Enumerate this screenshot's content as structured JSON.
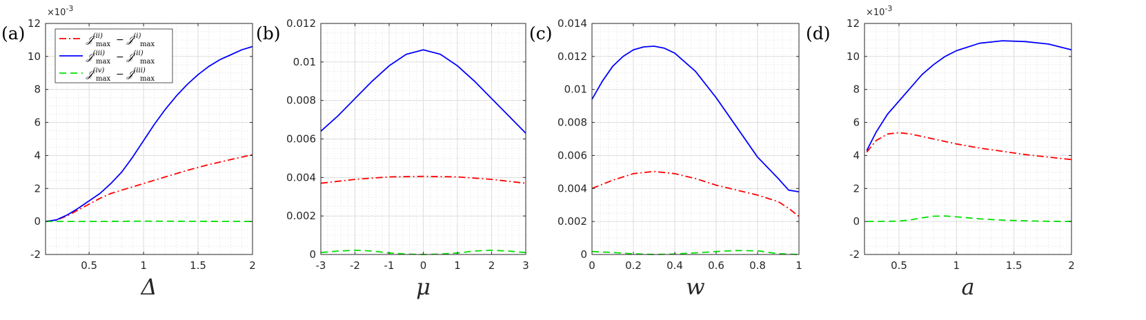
{
  "chart_data": [
    {
      "panel_label": "(a)",
      "type": "line",
      "xlabel": "Δ",
      "xlim": [
        0.1,
        2
      ],
      "ylim": [
        -2,
        12
      ],
      "x_ticks": [
        0.5,
        1,
        1.5,
        2
      ],
      "x_tick_labels": [
        "0.5",
        "1",
        "1.5",
        "2"
      ],
      "y_ticks": [
        -2,
        0,
        2,
        4,
        6,
        8,
        10,
        12
      ],
      "y_tick_labels": [
        "-2",
        "0",
        "2",
        "4",
        "6",
        "8",
        "10",
        "12"
      ],
      "y_multiplier": "×10",
      "y_multiplier_exp": "-3",
      "legend": true,
      "series": [
        {
          "name": "J_max^(ii) − J_max^(i)",
          "color": "#ff0000",
          "style": "dashdot",
          "x": [
            0.1,
            0.2,
            0.3,
            0.4,
            0.5,
            0.6,
            0.7,
            0.8,
            0.9,
            1.0,
            1.2,
            1.4,
            1.6,
            1.8,
            2.0
          ],
          "y": [
            0,
            0.08,
            0.35,
            0.7,
            1.05,
            1.4,
            1.7,
            1.9,
            2.1,
            2.3,
            2.7,
            3.1,
            3.45,
            3.75,
            4.05
          ]
        },
        {
          "name": "J_max^(iii) − J_max^(ii)",
          "color": "#0000ff",
          "style": "solid",
          "x": [
            0.1,
            0.2,
            0.3,
            0.4,
            0.5,
            0.6,
            0.7,
            0.8,
            0.9,
            1.0,
            1.1,
            1.2,
            1.3,
            1.4,
            1.5,
            1.6,
            1.7,
            1.8,
            1.9,
            2.0
          ],
          "y": [
            0,
            0.1,
            0.4,
            0.8,
            1.25,
            1.7,
            2.3,
            3.0,
            3.9,
            4.9,
            5.9,
            6.8,
            7.6,
            8.3,
            8.9,
            9.4,
            9.8,
            10.1,
            10.4,
            10.6
          ]
        },
        {
          "name": "J_max^(iv) − J_max^(iii)",
          "color": "#00e000",
          "style": "dashed",
          "x": [
            0.1,
            0.5,
            1.0,
            1.5,
            2.0
          ],
          "y": [
            0,
            0,
            0.02,
            0.01,
            0
          ]
        }
      ]
    },
    {
      "panel_label": "(b)",
      "type": "line",
      "xlabel": "μ",
      "xlim": [
        -3,
        3
      ],
      "ylim": [
        0,
        0.012
      ],
      "x_ticks": [
        -3,
        -2,
        -1,
        0,
        1,
        2,
        3
      ],
      "x_tick_labels": [
        "-3",
        "-2",
        "-1",
        "0",
        "1",
        "2",
        "3"
      ],
      "y_ticks": [
        0,
        0.002,
        0.004,
        0.006,
        0.008,
        0.01,
        0.012
      ],
      "y_tick_labels": [
        "0",
        "0.002",
        "0.004",
        "0.006",
        "0.008",
        "0.01",
        "0.012"
      ],
      "legend": false,
      "series": [
        {
          "name": "J_max^(ii) − J_max^(i)",
          "color": "#ff0000",
          "style": "dashdot",
          "x": [
            -3,
            -2,
            -1,
            0,
            1,
            2,
            3
          ],
          "y": [
            0.0037,
            0.0039,
            0.00403,
            0.00406,
            0.00403,
            0.0039,
            0.0037
          ]
        },
        {
          "name": "J_max^(iii) − J_max^(ii)",
          "color": "#0000ff",
          "style": "solid",
          "x": [
            -3,
            -2.5,
            -2,
            -1.5,
            -1,
            -0.5,
            0,
            0.5,
            1,
            1.5,
            2,
            2.5,
            3
          ],
          "y": [
            0.0064,
            0.0072,
            0.0081,
            0.009,
            0.0098,
            0.0104,
            0.01063,
            0.0104,
            0.0098,
            0.009,
            0.0081,
            0.0072,
            0.0063
          ]
        },
        {
          "name": "J_max^(iv) − J_max^(iii)",
          "color": "#00e000",
          "style": "dashed",
          "x": [
            -3,
            -2.5,
            -2,
            -1.5,
            -1,
            -0.5,
            0,
            0.5,
            1,
            1.5,
            2,
            2.5,
            3
          ],
          "y": [
            0.0001,
            0.00018,
            0.00022,
            0.00018,
            8e-05,
            2e-05,
            0.0,
            2e-05,
            8e-05,
            0.00018,
            0.00022,
            0.00018,
            0.0001
          ]
        }
      ]
    },
    {
      "panel_label": "(c)",
      "type": "line",
      "xlabel": "w",
      "xlim": [
        0,
        1
      ],
      "ylim": [
        0,
        0.014
      ],
      "x_ticks": [
        0,
        0.2,
        0.4,
        0.6,
        0.8,
        1
      ],
      "x_tick_labels": [
        "0",
        "0.2",
        "0.4",
        "0.6",
        "0.8",
        "1"
      ],
      "y_ticks": [
        0,
        0.002,
        0.004,
        0.006,
        0.008,
        0.01,
        0.012,
        0.014
      ],
      "y_tick_labels": [
        "0",
        "0.002",
        "0.004",
        "0.006",
        "0.008",
        "0.01",
        "0.012",
        "0.014"
      ],
      "legend": false,
      "series": [
        {
          "name": "J_max^(ii) − J_max^(i)",
          "color": "#ff0000",
          "style": "dashdot",
          "x": [
            0,
            0.1,
            0.2,
            0.3,
            0.4,
            0.5,
            0.6,
            0.7,
            0.8,
            0.9,
            0.95,
            1.0
          ],
          "y": [
            0.004,
            0.0045,
            0.0049,
            0.00503,
            0.0049,
            0.0046,
            0.0042,
            0.0039,
            0.0036,
            0.0032,
            0.0028,
            0.0023
          ]
        },
        {
          "name": "J_max^(iii) − J_max^(ii)",
          "color": "#0000ff",
          "style": "solid",
          "x": [
            0,
            0.05,
            0.1,
            0.15,
            0.2,
            0.25,
            0.3,
            0.35,
            0.4,
            0.5,
            0.6,
            0.7,
            0.8,
            0.9,
            0.95,
            1.0
          ],
          "y": [
            0.0094,
            0.0105,
            0.0114,
            0.012,
            0.0124,
            0.01258,
            0.01262,
            0.0125,
            0.0122,
            0.0111,
            0.0095,
            0.0077,
            0.0059,
            0.0046,
            0.0039,
            0.0038
          ]
        },
        {
          "name": "J_max^(iv) − J_max^(iii)",
          "color": "#00e000",
          "style": "dashed",
          "x": [
            0,
            0.1,
            0.2,
            0.3,
            0.4,
            0.5,
            0.6,
            0.7,
            0.8,
            0.9,
            1.0
          ],
          "y": [
            0.00018,
            0.00012,
            4e-05,
            0.0,
            3e-05,
            0.0001,
            0.00018,
            0.00024,
            0.00022,
            5e-05,
            0.0
          ]
        }
      ]
    },
    {
      "panel_label": "(d)",
      "type": "line",
      "xlabel": "a",
      "xlim": [
        0.2,
        2
      ],
      "ylim": [
        -2,
        12
      ],
      "x_ticks": [
        0.5,
        1,
        1.5,
        2
      ],
      "x_tick_labels": [
        "0.5",
        "1",
        "1.5",
        "2"
      ],
      "y_ticks": [
        -2,
        0,
        2,
        4,
        6,
        8,
        10,
        12
      ],
      "y_tick_labels": [
        "-2",
        "0",
        "2",
        "4",
        "6",
        "8",
        "10",
        "12"
      ],
      "y_multiplier": "×10",
      "y_multiplier_exp": "-3",
      "legend": false,
      "series": [
        {
          "name": "J_max^(ii) − J_max^(i)",
          "color": "#ff0000",
          "style": "dashdot",
          "x": [
            0.22,
            0.3,
            0.4,
            0.5,
            0.6,
            0.8,
            1.0,
            1.2,
            1.4,
            1.6,
            1.8,
            2.0
          ],
          "y": [
            4.2,
            4.9,
            5.3,
            5.38,
            5.3,
            5.0,
            4.7,
            4.45,
            4.25,
            4.05,
            3.9,
            3.75
          ]
        },
        {
          "name": "J_max^(iii) − J_max^(ii)",
          "color": "#0000ff",
          "style": "solid",
          "x": [
            0.22,
            0.3,
            0.4,
            0.5,
            0.6,
            0.7,
            0.8,
            0.9,
            1.0,
            1.2,
            1.4,
            1.6,
            1.8,
            2.0
          ],
          "y": [
            4.3,
            5.4,
            6.5,
            7.3,
            8.1,
            8.9,
            9.5,
            10.0,
            10.35,
            10.8,
            10.95,
            10.9,
            10.75,
            10.4
          ]
        },
        {
          "name": "J_max^(iv) − J_max^(iii)",
          "color": "#00e000",
          "style": "dashed",
          "x": [
            0.22,
            0.5,
            0.6,
            0.7,
            0.8,
            0.9,
            1.0,
            1.2,
            1.4,
            1.6,
            1.8,
            2.0
          ],
          "y": [
            0,
            0.02,
            0.1,
            0.22,
            0.32,
            0.33,
            0.28,
            0.16,
            0.08,
            0.04,
            0.01,
            0
          ]
        }
      ]
    }
  ],
  "legend_entries": [
    {
      "sup_a": "(ii)",
      "sup_b": "(i)",
      "color": "#ff0000",
      "style": "dashdot"
    },
    {
      "sup_a": "(iii)",
      "sup_b": "(ii)",
      "color": "#0000ff",
      "style": "solid"
    },
    {
      "sup_a": "(iv)",
      "sup_b": "(iii)",
      "color": "#00e000",
      "style": "dashed"
    }
  ],
  "legend_symbol": "𝒥",
  "legend_sub": "max",
  "legend_minus": "−"
}
